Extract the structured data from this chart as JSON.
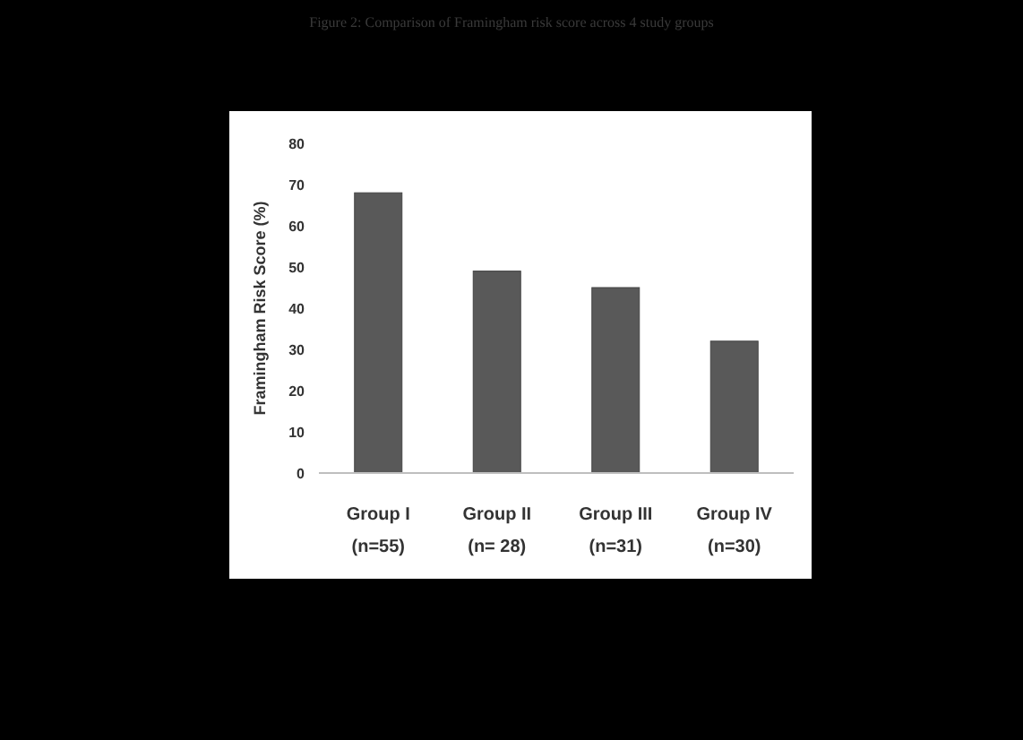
{
  "chart_data": {
    "type": "bar",
    "title": "Figure 2: Comparison of Framingham risk score across 4 study groups",
    "ylabel": "Framingham Risk Score (%)",
    "categories": [
      "Group I\n(n=55)",
      "Group II\n(n= 28)",
      "Group III\n(n=31)",
      "Group IV\n(n=30)"
    ],
    "values": [
      68,
      49,
      45,
      32
    ],
    "color": "#595959",
    "ylim": [
      0,
      80
    ],
    "yticks": [
      0,
      10,
      20,
      30,
      40,
      50,
      60,
      70,
      80
    ],
    "grid": false
  }
}
